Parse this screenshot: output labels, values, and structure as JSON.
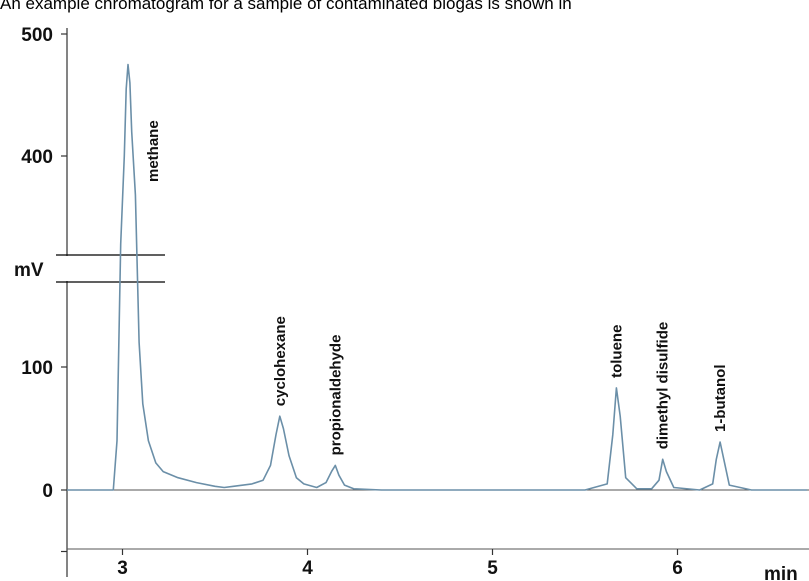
{
  "caption": "An example chromatogram for a sample of contaminated biogas is shown in",
  "chart_data": {
    "type": "line",
    "xlabel": "min",
    "ylabel": "mV",
    "x_ticks": [
      "3",
      "4",
      "5",
      "6"
    ],
    "y_ticks": [
      "500",
      "400",
      "100",
      "0"
    ],
    "xlim": [
      2.7,
      6.7
    ],
    "y_lower_segment": [
      -60,
      170
    ],
    "y_upper_segment": [
      270,
      500
    ],
    "axis_break": [
      170,
      270
    ],
    "grid": false,
    "line_color": "#6b8fa8",
    "peaks": [
      {
        "name": "methane",
        "x": 3.03,
        "height": 475
      },
      {
        "name": "cyclohexane",
        "x": 3.85,
        "height": 60
      },
      {
        "name": "propionaldehyde",
        "x": 4.15,
        "height": 20
      },
      {
        "name": "toluene",
        "x": 5.67,
        "height": 83
      },
      {
        "name": "dimethyl disulfide",
        "x": 5.92,
        "height": 25
      },
      {
        "name": "1-butanol",
        "x": 6.23,
        "height": 39
      }
    ],
    "series": [
      {
        "x": [
          2.7,
          2.95,
          2.97,
          2.99,
          3.01,
          3.02,
          3.03,
          3.04,
          3.05,
          3.07,
          3.09,
          3.11,
          3.14,
          3.18,
          3.22,
          3.3,
          3.4,
          3.5,
          3.55,
          3.6,
          3.7,
          3.76,
          3.8,
          3.83,
          3.85,
          3.87,
          3.9,
          3.94,
          3.98,
          4.05,
          4.1,
          4.13,
          4.15,
          4.17,
          4.2,
          4.25,
          4.4,
          5.0,
          5.5,
          5.62,
          5.65,
          5.67,
          5.69,
          5.72,
          5.78,
          5.86,
          5.9,
          5.92,
          5.94,
          5.98,
          6.12,
          6.19,
          6.21,
          6.23,
          6.25,
          6.28,
          6.4,
          6.7
        ],
        "y": [
          0,
          0,
          40,
          200,
          400,
          455,
          475,
          460,
          420,
          240,
          120,
          70,
          40,
          22,
          15,
          10,
          6,
          3,
          2,
          3,
          5,
          8,
          20,
          45,
          60,
          50,
          28,
          10,
          5,
          2,
          6,
          15,
          20,
          12,
          4,
          1,
          0,
          0,
          0,
          5,
          45,
          83,
          60,
          10,
          1,
          1,
          8,
          25,
          15,
          2,
          0,
          5,
          25,
          39,
          25,
          4,
          0,
          0
        ]
      }
    ]
  }
}
